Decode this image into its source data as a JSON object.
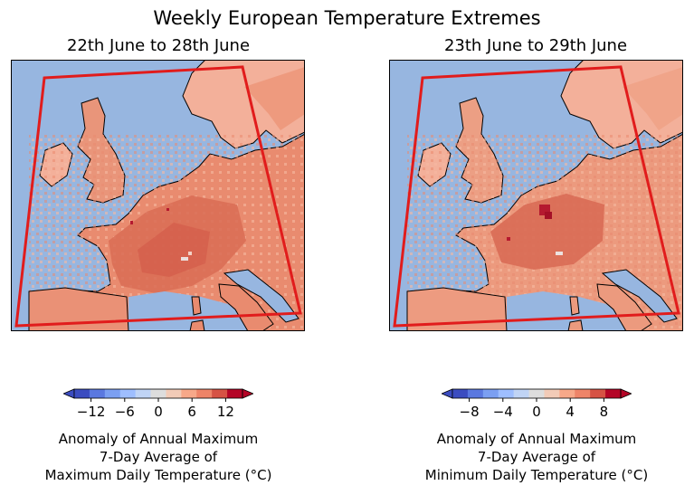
{
  "title": "Weekly European Temperature Extremes",
  "panels": [
    {
      "subtitle": "22th June to 28th June",
      "colorbar": {
        "ticks": [
          -12,
          -6,
          0,
          6,
          12
        ],
        "tick_labels": [
          "−12",
          "−6",
          "0",
          "6",
          "12"
        ],
        "range": [
          -15,
          15
        ],
        "caption": [
          "Anomaly of Annual Maximum",
          "7-Day Average of",
          "Maximum Daily Temperature (°C)"
        ]
      }
    },
    {
      "subtitle": "23th June to 29th June",
      "colorbar": {
        "ticks": [
          -8,
          -4,
          0,
          4,
          8
        ],
        "tick_labels": [
          "−8",
          "−4",
          "0",
          "4",
          "8"
        ],
        "range": [
          -10,
          10
        ],
        "caption": [
          "Anomaly of Annual Maximum",
          "7-Day Average of",
          "Minimum Daily Temperature (°C)"
        ]
      }
    }
  ],
  "colors": {
    "sea": "#97b6e0",
    "land_mild": "#f3b09a",
    "land_warm": "#e98b6f",
    "land_hot": "#d75a48",
    "land_extreme": "#b5192f",
    "region_outline": "#e11c1c",
    "colormap": [
      "#3b4cc0",
      "#5a78e0",
      "#7b9ff2",
      "#9ebeff",
      "#c0d4f5",
      "#dddddd",
      "#f2cbb7",
      "#f7a889",
      "#ee8468",
      "#d65244",
      "#b40426"
    ]
  }
}
